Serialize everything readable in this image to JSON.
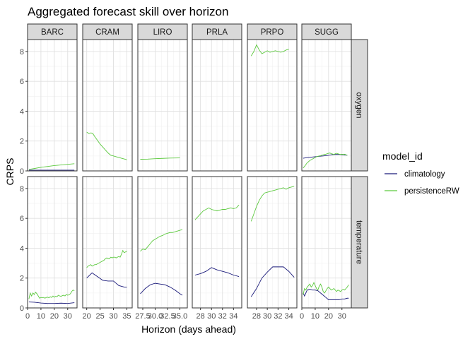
{
  "chart_data": {
    "type": "line",
    "title": "Aggregated forecast skill over horizon",
    "xlabel": "Horizon (days ahead)",
    "ylabel": "CRPS",
    "ylim": [
      0,
      8.8
    ],
    "yticks": [
      0,
      2,
      4,
      6,
      8
    ],
    "facet_cols": [
      "BARC",
      "CRAM",
      "LIRO",
      "PRLA",
      "PRPO",
      "SUGG"
    ],
    "facet_rows": [
      "oxygen",
      "temperature"
    ],
    "legend": {
      "title": "model_id",
      "placement": "right",
      "entries": [
        {
          "name": "climatology",
          "color": "#1a1a7a"
        },
        {
          "name": "persistenceRW",
          "color": "#5cc93e"
        }
      ]
    },
    "panels": [
      {
        "site": "BARC",
        "xlim": [
          0,
          37
        ],
        "xticks": [
          0,
          10,
          20,
          30
        ],
        "tick_labels": [
          "0",
          "10",
          "20",
          "30"
        ]
      },
      {
        "site": "CRAM",
        "xlim": [
          18.5,
          37
        ],
        "xticks": [
          20,
          25,
          30,
          35
        ],
        "tick_labels": [
          "20",
          "25",
          "30",
          "35"
        ]
      },
      {
        "site": "LIRO",
        "xlim": [
          26.5,
          36.5
        ],
        "xticks": [
          27.5,
          30,
          32.5,
          35
        ],
        "tick_labels": [
          "27.5",
          "30.0",
          "32.5",
          "35.0"
        ]
      },
      {
        "site": "PRLA",
        "xlim": [
          26.5,
          35.5
        ],
        "xticks": [
          28,
          30,
          32,
          34
        ],
        "tick_labels": [
          "28",
          "30",
          "32",
          "34"
        ]
      },
      {
        "site": "PRPO",
        "xlim": [
          26.3,
          35.5
        ],
        "xticks": [
          28,
          30,
          32,
          34
        ],
        "tick_labels": [
          "28",
          "30",
          "32",
          "34"
        ]
      },
      {
        "site": "SUGG",
        "xlim": [
          0,
          37
        ],
        "xticks": [
          0,
          10,
          20,
          30
        ],
        "tick_labels": [
          "0",
          "10",
          "20",
          "30"
        ]
      }
    ],
    "series": [
      {
        "site": "BARC",
        "variable": "oxygen",
        "model": "climatology",
        "x": [
          1,
          35
        ],
        "y": [
          0.05,
          0.05
        ]
      },
      {
        "site": "BARC",
        "variable": "oxygen",
        "model": "persistenceRW",
        "x": [
          1,
          5,
          10,
          15,
          20,
          25,
          30,
          35
        ],
        "y": [
          0.1,
          0.16,
          0.24,
          0.3,
          0.36,
          0.4,
          0.44,
          0.48
        ]
      },
      {
        "site": "CRAM",
        "variable": "oxygen",
        "model": "persistenceRW",
        "x": [
          20,
          20.8,
          21.6,
          22.3,
          23,
          24,
          25,
          26,
          27,
          28,
          29,
          30,
          31,
          32,
          33,
          34,
          35
        ],
        "y": [
          2.6,
          2.5,
          2.55,
          2.5,
          2.3,
          2.05,
          1.8,
          1.6,
          1.4,
          1.2,
          1.05,
          1.0,
          0.95,
          0.9,
          0.85,
          0.8,
          0.75
        ]
      },
      {
        "site": "LIRO",
        "variable": "oxygen",
        "model": "persistenceRW",
        "x": [
          27,
          28.5,
          30,
          31.5,
          33,
          35
        ],
        "y": [
          0.78,
          0.79,
          0.82,
          0.84,
          0.86,
          0.87
        ]
      },
      {
        "site": "PRPO",
        "variable": "oxygen",
        "model": "persistenceRW",
        "x": [
          27,
          27.5,
          28,
          28.5,
          29,
          29.5,
          30,
          30.5,
          31,
          31.5,
          32,
          32.5,
          33,
          33.5,
          34
        ],
        "y": [
          7.7,
          8.0,
          8.45,
          8.1,
          7.85,
          7.95,
          8.05,
          7.95,
          8.0,
          8.05,
          8.0,
          7.95,
          8.0,
          8.1,
          8.15
        ]
      },
      {
        "site": "SUGG",
        "variable": "oxygen",
        "model": "climatology",
        "x": [
          1,
          3,
          5,
          8,
          10,
          13,
          16,
          19,
          22,
          25,
          28,
          31,
          34
        ],
        "y": [
          0.85,
          0.88,
          0.9,
          0.93,
          0.95,
          0.98,
          1.0,
          1.03,
          1.08,
          1.1,
          1.1,
          1.08,
          1.05
        ]
      },
      {
        "site": "SUGG",
        "variable": "oxygen",
        "model": "persistenceRW",
        "x": [
          1,
          2,
          3,
          4,
          5,
          6,
          7,
          8,
          9,
          10,
          11,
          12,
          13,
          14,
          15,
          16,
          17,
          18,
          19,
          20,
          21,
          22,
          23,
          24,
          25,
          26,
          27,
          28,
          29,
          30,
          31,
          32,
          33,
          34
        ],
        "y": [
          0.2,
          0.3,
          0.42,
          0.55,
          0.62,
          0.7,
          0.75,
          0.8,
          0.85,
          0.9,
          0.95,
          0.98,
          1.0,
          1.02,
          1.05,
          1.08,
          1.1,
          1.12,
          1.15,
          1.18,
          1.2,
          1.15,
          1.13,
          1.1,
          1.15,
          1.18,
          1.15,
          1.12,
          1.1,
          1.12,
          1.1,
          1.12,
          1.08,
          1.05
        ]
      },
      {
        "site": "BARC",
        "variable": "temperature",
        "model": "climatology",
        "x": [
          1,
          5,
          10,
          15,
          20,
          25,
          30,
          35
        ],
        "y": [
          0.4,
          0.38,
          0.33,
          0.3,
          0.3,
          0.32,
          0.3,
          0.35
        ]
      },
      {
        "site": "BARC",
        "variable": "temperature",
        "model": "persistenceRW",
        "x": [
          1,
          2,
          3,
          4,
          5,
          6,
          7,
          8,
          9,
          10,
          11,
          12,
          13,
          14,
          15,
          16,
          17,
          18,
          19,
          20,
          21,
          22,
          23,
          24,
          25,
          26,
          27,
          28,
          29,
          30,
          31,
          32,
          33,
          34,
          35
        ],
        "y": [
          0.6,
          1.0,
          0.8,
          1.0,
          0.9,
          1.05,
          0.95,
          0.8,
          0.65,
          0.7,
          0.68,
          0.7,
          0.65,
          0.7,
          0.72,
          0.68,
          0.75,
          0.7,
          0.8,
          0.72,
          0.78,
          0.75,
          0.85,
          0.8,
          0.78,
          0.82,
          0.85,
          0.8,
          0.9,
          0.85,
          0.88,
          0.95,
          1.1,
          1.2,
          1.15
        ]
      },
      {
        "site": "CRAM",
        "variable": "temperature",
        "model": "climatology",
        "x": [
          20,
          22,
          24,
          26,
          28,
          30,
          32,
          34,
          35
        ],
        "y": [
          2.0,
          2.35,
          2.1,
          1.85,
          1.8,
          1.8,
          1.5,
          1.4,
          1.4
        ]
      },
      {
        "site": "CRAM",
        "variable": "temperature",
        "model": "persistenceRW",
        "x": [
          20,
          20.5,
          21,
          21.5,
          22,
          22.5,
          23,
          23.5,
          24,
          24.5,
          25,
          25.5,
          26,
          26.5,
          27,
          27.5,
          28,
          28.5,
          29,
          29.5,
          30,
          30.5,
          31,
          31.5,
          32,
          32.5,
          33,
          33.5,
          34,
          34.5,
          35
        ],
        "y": [
          2.7,
          2.8,
          2.85,
          2.9,
          2.8,
          2.85,
          2.9,
          2.9,
          2.95,
          3.0,
          3.05,
          3.1,
          3.15,
          3.2,
          3.3,
          3.35,
          3.3,
          3.3,
          3.4,
          3.35,
          3.4,
          3.4,
          3.35,
          3.4,
          3.45,
          3.4,
          3.6,
          3.85,
          3.7,
          3.75,
          3.8
        ]
      },
      {
        "site": "LIRO",
        "variable": "temperature",
        "model": "climatology",
        "x": [
          27,
          28,
          29,
          30,
          31,
          32,
          33,
          34,
          35,
          35.5
        ],
        "y": [
          0.95,
          1.3,
          1.55,
          1.65,
          1.6,
          1.55,
          1.4,
          1.2,
          0.95,
          0.85
        ]
      },
      {
        "site": "LIRO",
        "variable": "temperature",
        "model": "persistenceRW",
        "x": [
          27,
          27.5,
          28,
          28.5,
          29,
          29.5,
          30,
          30.5,
          31,
          31.5,
          32,
          32.5,
          33,
          33.5,
          34,
          34.5,
          35,
          35.5
        ],
        "y": [
          3.8,
          3.95,
          3.9,
          4.1,
          4.3,
          4.5,
          4.6,
          4.7,
          4.8,
          4.85,
          4.95,
          5.0,
          5.05,
          5.05,
          5.1,
          5.15,
          5.2,
          5.25
        ]
      },
      {
        "site": "PRLA",
        "variable": "temperature",
        "model": "climatology",
        "x": [
          27,
          28,
          29,
          30,
          31,
          32,
          33,
          34,
          35
        ],
        "y": [
          2.2,
          2.3,
          2.45,
          2.7,
          2.55,
          2.45,
          2.35,
          2.2,
          2.1
        ]
      },
      {
        "site": "PRLA",
        "variable": "temperature",
        "model": "persistenceRW",
        "x": [
          27,
          27.5,
          28,
          28.5,
          29,
          29.5,
          30,
          30.5,
          31,
          31.5,
          32,
          32.5,
          33,
          33.5,
          34,
          34.5,
          35
        ],
        "y": [
          5.9,
          6.1,
          6.3,
          6.5,
          6.6,
          6.7,
          6.6,
          6.55,
          6.5,
          6.55,
          6.6,
          6.6,
          6.65,
          6.7,
          6.65,
          6.7,
          6.9
        ]
      },
      {
        "site": "PRPO",
        "variable": "temperature",
        "model": "climatology",
        "x": [
          27,
          28,
          29,
          30,
          31,
          32,
          33,
          34,
          35
        ],
        "y": [
          0.75,
          1.3,
          2.0,
          2.4,
          2.75,
          2.75,
          2.75,
          2.45,
          2.05
        ]
      },
      {
        "site": "PRPO",
        "variable": "temperature",
        "model": "persistenceRW",
        "x": [
          27,
          27.5,
          28,
          28.5,
          29,
          29.5,
          30,
          30.5,
          31,
          31.5,
          32,
          32.5,
          33,
          33.5,
          34,
          34.5,
          35
        ],
        "y": [
          5.8,
          6.3,
          6.8,
          7.2,
          7.5,
          7.7,
          7.75,
          7.8,
          7.85,
          7.9,
          7.95,
          8.0,
          8.05,
          7.95,
          8.05,
          8.1,
          8.15
        ]
      },
      {
        "site": "SUGG",
        "variable": "temperature",
        "model": "climatology",
        "x": [
          1,
          2,
          4,
          6,
          8,
          10,
          12,
          14,
          16,
          18,
          20,
          22,
          24,
          26,
          28,
          30,
          32,
          34,
          35
        ],
        "y": [
          1.0,
          0.8,
          1.2,
          1.25,
          1.2,
          1.2,
          1.15,
          1.0,
          0.85,
          0.7,
          0.55,
          0.55,
          0.55,
          0.55,
          0.55,
          0.6,
          0.6,
          0.65,
          0.65
        ]
      },
      {
        "site": "SUGG",
        "variable": "temperature",
        "model": "persistenceRW",
        "x": [
          1,
          2,
          3,
          4,
          5,
          6,
          7,
          8,
          9,
          10,
          11,
          12,
          13,
          14,
          15,
          16,
          17,
          18,
          19,
          20,
          21,
          22,
          23,
          24,
          25,
          26,
          27,
          28,
          29,
          30,
          31,
          32,
          33,
          34,
          35
        ],
        "y": [
          0.9,
          1.3,
          1.2,
          1.4,
          1.5,
          1.6,
          1.4,
          1.5,
          1.7,
          1.5,
          1.3,
          1.2,
          1.45,
          1.6,
          1.4,
          1.1,
          1.0,
          1.15,
          1.3,
          1.4,
          1.3,
          1.2,
          1.25,
          1.3,
          1.2,
          1.1,
          1.2,
          1.15,
          1.1,
          1.2,
          1.25,
          1.2,
          1.3,
          1.4,
          1.55
        ]
      }
    ]
  }
}
